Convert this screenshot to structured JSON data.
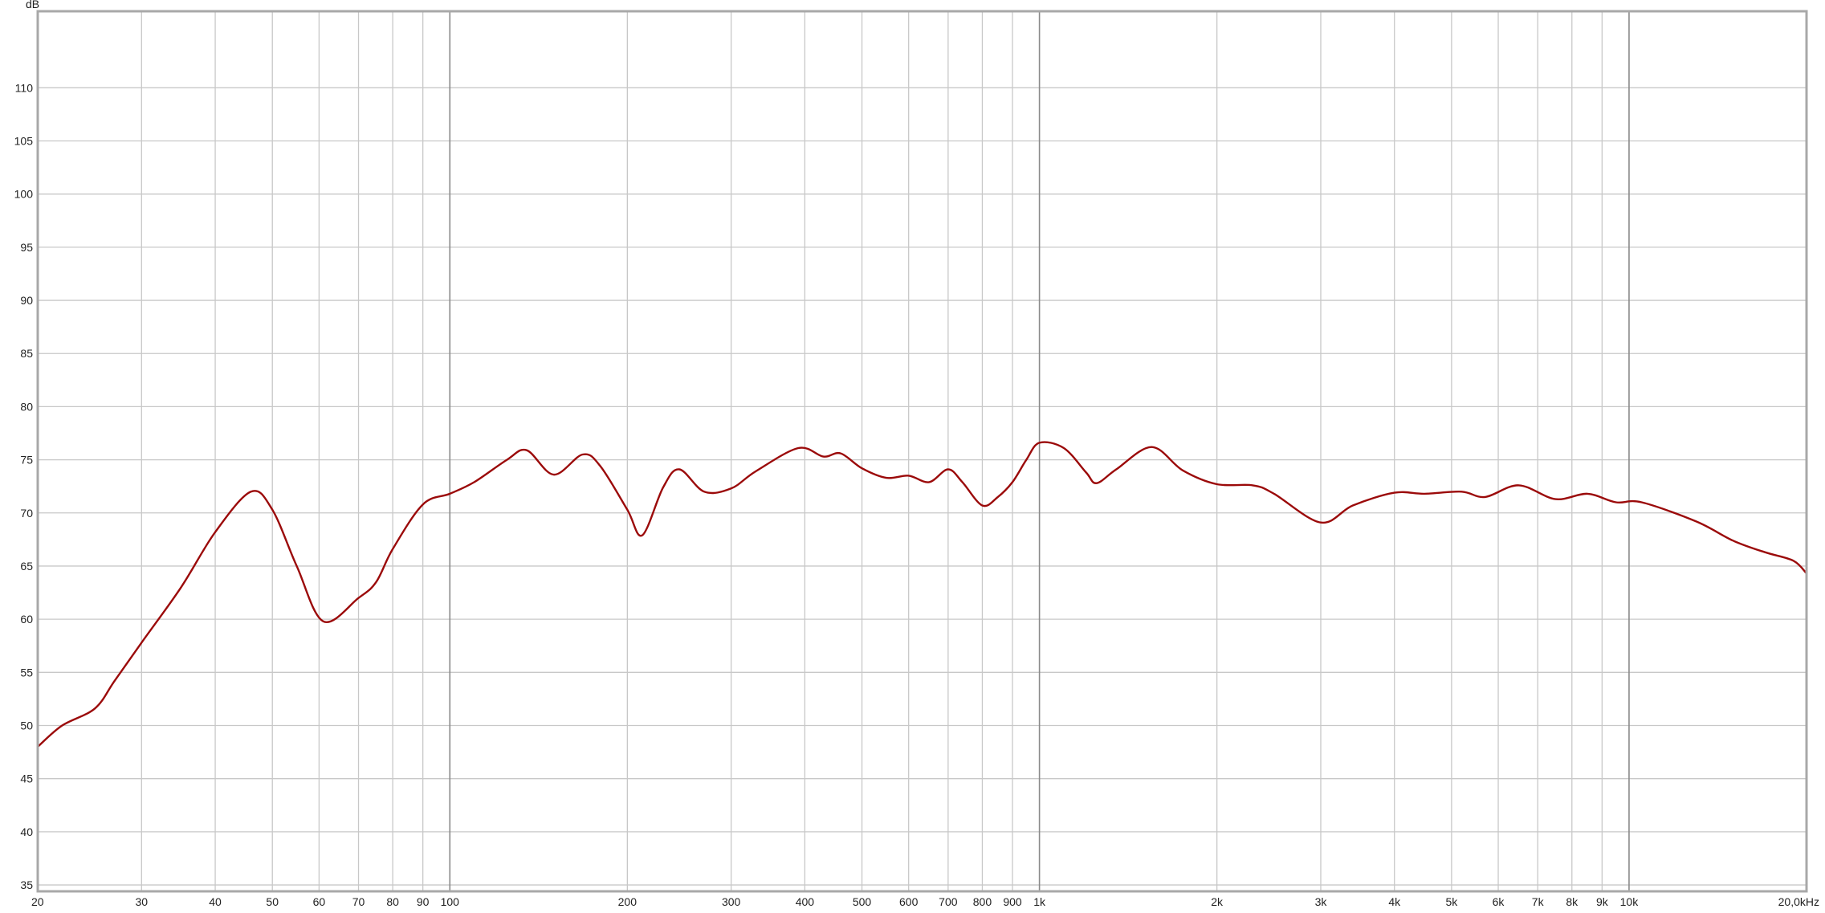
{
  "chart_data": {
    "type": "line",
    "title": "",
    "ylabel": "dB",
    "xlabel": "",
    "x_scale": "log",
    "xlim": [
      20,
      20000
    ],
    "ylim": [
      34.4,
      117.2
    ],
    "grid": true,
    "line_color": "#9b0a0a",
    "grid_color": "#c8c8c8",
    "major_grid_color": "#8a8a8a",
    "y_ticks": [
      35,
      40,
      45,
      50,
      55,
      60,
      65,
      70,
      75,
      80,
      85,
      90,
      95,
      100,
      105,
      110
    ],
    "x_ticks": [
      {
        "value": 20,
        "label": "20"
      },
      {
        "value": 30,
        "label": "30"
      },
      {
        "value": 40,
        "label": "40"
      },
      {
        "value": 50,
        "label": "50"
      },
      {
        "value": 60,
        "label": "60"
      },
      {
        "value": 70,
        "label": "70"
      },
      {
        "value": 80,
        "label": "80"
      },
      {
        "value": 90,
        "label": "90"
      },
      {
        "value": 100,
        "label": "100"
      },
      {
        "value": 200,
        "label": "200"
      },
      {
        "value": 300,
        "label": "300"
      },
      {
        "value": 400,
        "label": "400"
      },
      {
        "value": 500,
        "label": "500"
      },
      {
        "value": 600,
        "label": "600"
      },
      {
        "value": 700,
        "label": "700"
      },
      {
        "value": 800,
        "label": "800"
      },
      {
        "value": 900,
        "label": "900"
      },
      {
        "value": 1000,
        "label": "1k"
      },
      {
        "value": 2000,
        "label": "2k"
      },
      {
        "value": 3000,
        "label": "3k"
      },
      {
        "value": 4000,
        "label": "4k"
      },
      {
        "value": 5000,
        "label": "5k"
      },
      {
        "value": 6000,
        "label": "6k"
      },
      {
        "value": 7000,
        "label": "7k"
      },
      {
        "value": 8000,
        "label": "8k"
      },
      {
        "value": 9000,
        "label": "9k"
      },
      {
        "value": 10000,
        "label": "10k"
      },
      {
        "value": 20000,
        "label": "20,0kHz"
      }
    ],
    "major_x": [
      100,
      1000,
      10000
    ],
    "series": [
      {
        "x": [
          20,
          22,
          25,
          27,
          30,
          35,
          40,
          46,
          50,
          55,
          61,
          70,
          75,
          80,
          90,
          100,
          110,
          125,
          135,
          150,
          168,
          180,
          200,
          212,
          230,
          245,
          270,
          300,
          330,
          390,
          430,
          460,
          500,
          550,
          600,
          650,
          700,
          740,
          800,
          850,
          900,
          950,
          1000,
          1100,
          1200,
          1250,
          1350,
          1550,
          1750,
          2000,
          2300,
          2500,
          3000,
          3400,
          4000,
          4500,
          5200,
          5700,
          6500,
          7500,
          8500,
          9500,
          10500,
          13000,
          15000,
          17000,
          19000,
          20000
        ],
        "y": [
          48.0,
          50.0,
          51.6,
          54.2,
          57.8,
          63.0,
          68.2,
          72.0,
          70.3,
          65.0,
          59.8,
          62.0,
          63.5,
          66.6,
          70.8,
          71.8,
          72.9,
          75.0,
          75.9,
          73.6,
          75.5,
          74.4,
          70.3,
          67.9,
          72.4,
          74.1,
          72.0,
          72.3,
          73.9,
          76.1,
          75.3,
          75.6,
          74.2,
          73.3,
          73.5,
          72.9,
          74.1,
          72.9,
          70.7,
          71.5,
          72.9,
          75.0,
          76.6,
          76.1,
          73.8,
          72.8,
          74.1,
          76.2,
          74.0,
          72.7,
          72.6,
          71.8,
          69.1,
          70.7,
          71.9,
          71.8,
          72.0,
          71.5,
          72.6,
          71.3,
          71.8,
          71.0,
          71.0,
          69.2,
          67.4,
          66.3,
          65.5,
          64.3
        ]
      }
    ]
  }
}
